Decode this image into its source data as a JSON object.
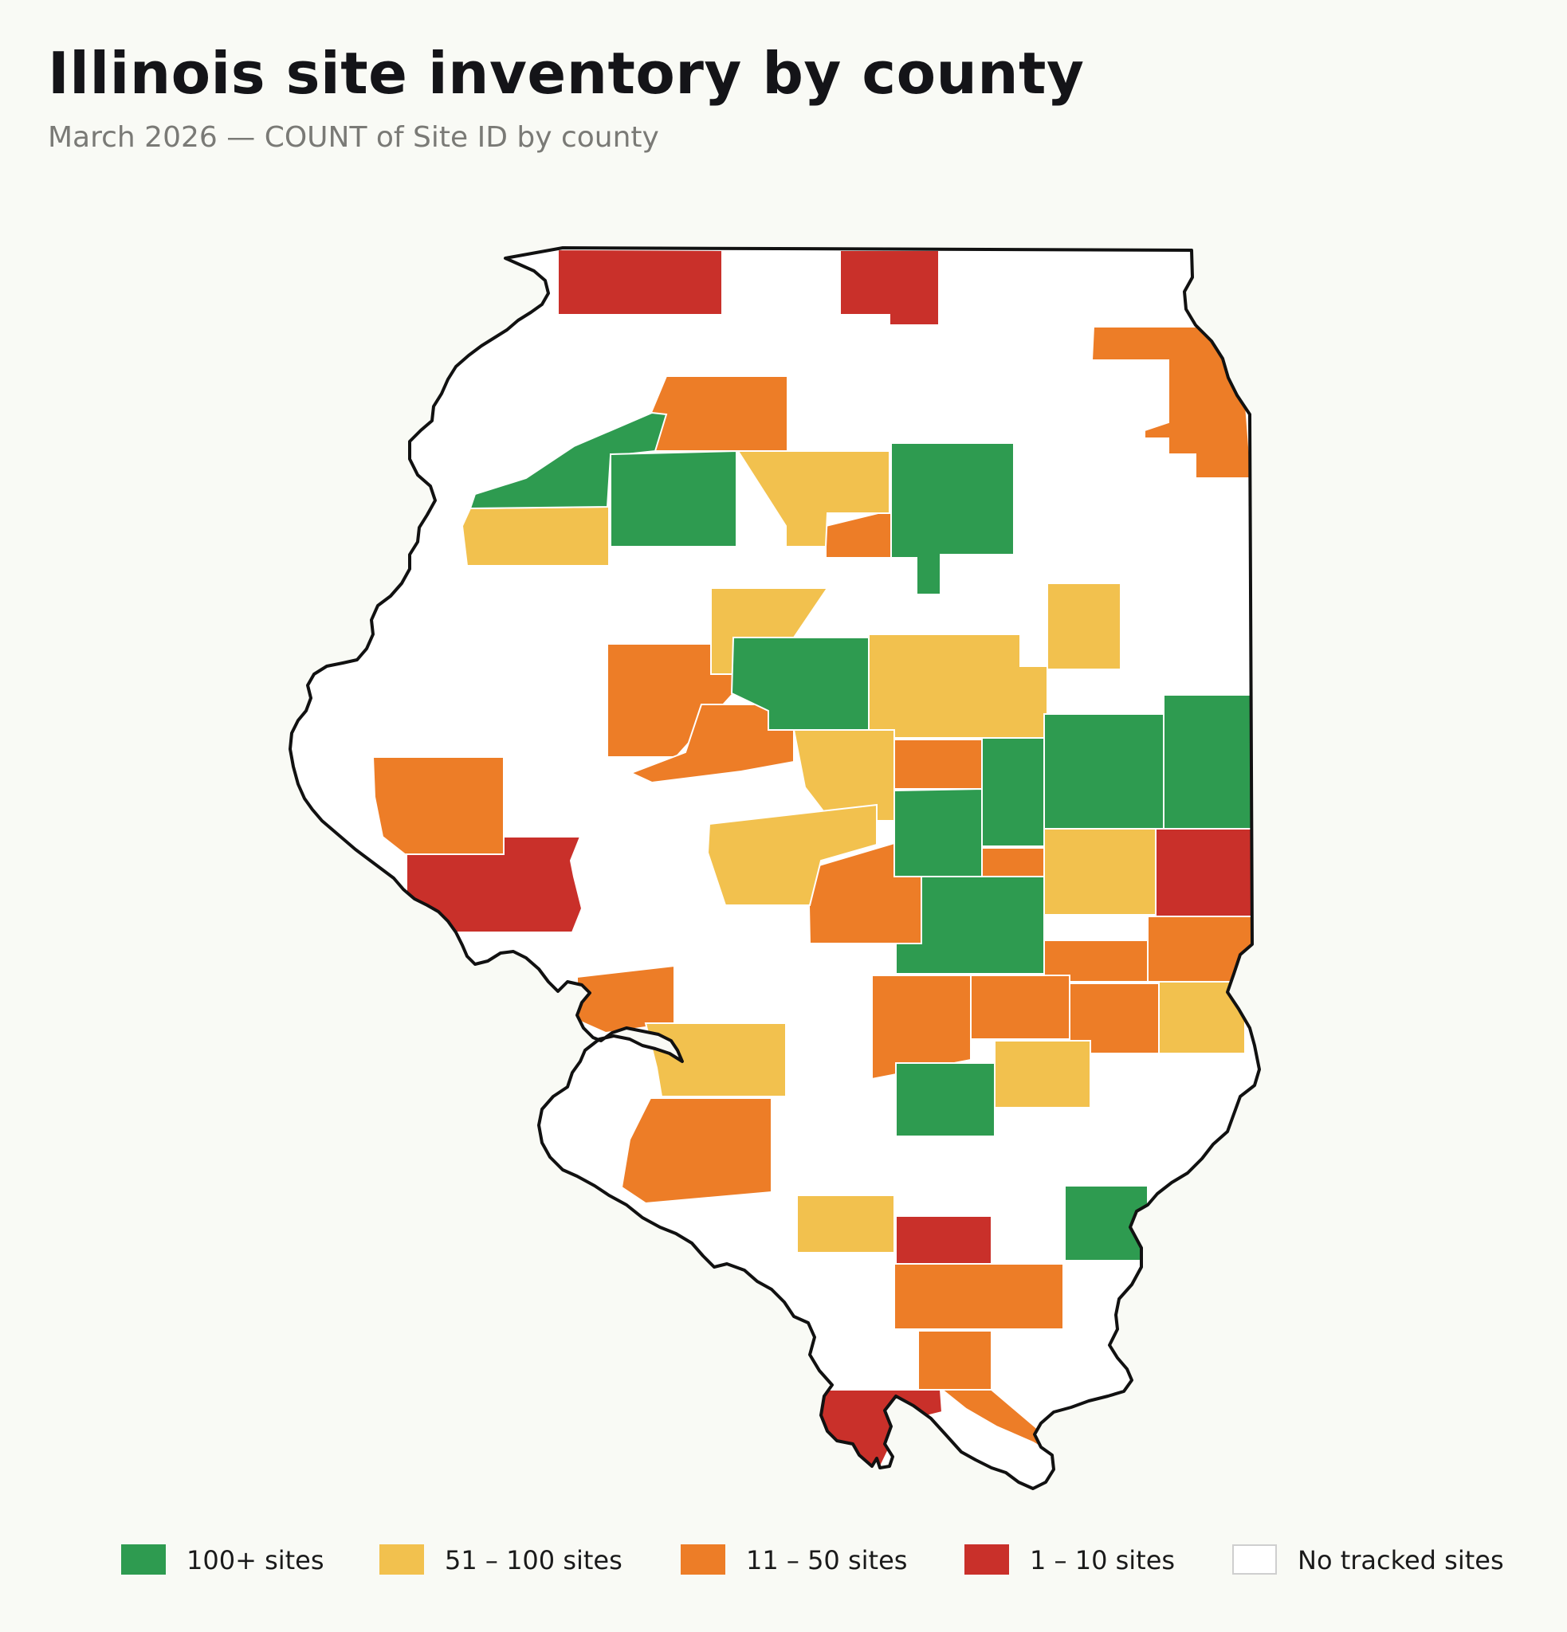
{
  "header": {
    "title": "Illinois site inventory by county",
    "subtitle": "March 2026 — COUNT of Site ID by county"
  },
  "map": {
    "region": "Illinois",
    "unit": "counties",
    "measure": "COUNT of Site ID",
    "outline_color": "#111111",
    "default_fill": "#ffffff"
  },
  "legend": {
    "items": [
      {
        "label": "100+ sites",
        "color": "#2e9b50"
      },
      {
        "label": "51 – 100 sites",
        "color": "#f2c14e"
      },
      {
        "label": "11 – 50 sites",
        "color": "#ed7d27"
      },
      {
        "label": "1 – 10 sites",
        "color": "#c9302a"
      },
      {
        "label": "No tracked sites",
        "color": "#ffffff"
      }
    ]
  }
}
